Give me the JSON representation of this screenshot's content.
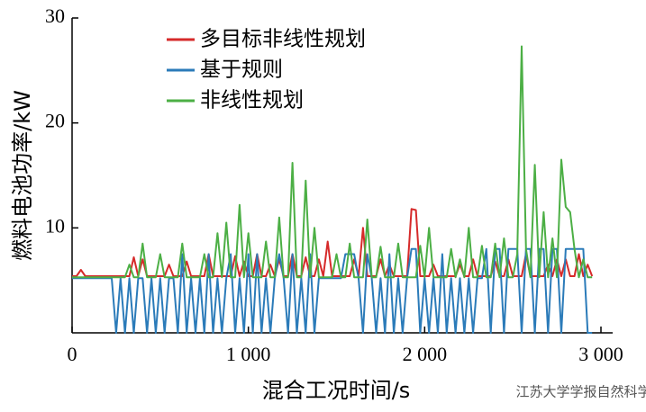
{
  "chart_data": {
    "type": "line",
    "x_label": "混合工况时间/s",
    "y_label": "燃料电池功率/kW",
    "watermark": "江苏大学学报自然科学版",
    "xlim": [
      0,
      3000
    ],
    "ylim": [
      0,
      30
    ],
    "xticks": [
      0,
      {
        "value": 1000,
        "label": "1 000"
      },
      {
        "value": 2000,
        "label": "2 000"
      },
      {
        "value": 3000,
        "label": "3 000"
      }
    ],
    "yticks": [
      10,
      20,
      30
    ],
    "grid": false,
    "legend": "top-left",
    "x": [
      0,
      25,
      50,
      75,
      100,
      125,
      150,
      175,
      200,
      225,
      250,
      275,
      300,
      325,
      350,
      375,
      400,
      425,
      450,
      475,
      500,
      525,
      550,
      575,
      600,
      625,
      650,
      675,
      700,
      725,
      750,
      775,
      800,
      825,
      850,
      875,
      900,
      925,
      950,
      975,
      1000,
      1025,
      1050,
      1075,
      1100,
      1125,
      1150,
      1175,
      1200,
      1225,
      1250,
      1275,
      1300,
      1325,
      1350,
      1375,
      1400,
      1425,
      1450,
      1475,
      1500,
      1525,
      1550,
      1575,
      1600,
      1625,
      1650,
      1675,
      1700,
      1725,
      1750,
      1775,
      1800,
      1825,
      1850,
      1875,
      1900,
      1925,
      1950,
      1975,
      2000,
      2025,
      2050,
      2075,
      2100,
      2125,
      2150,
      2175,
      2200,
      2225,
      2250,
      2275,
      2300,
      2325,
      2350,
      2375,
      2400,
      2425,
      2450,
      2475,
      2500,
      2525,
      2550,
      2575,
      2600,
      2625,
      2650,
      2675,
      2700,
      2725,
      2750,
      2775,
      2800,
      2825,
      2850,
      2875,
      2900,
      2925,
      2950
    ],
    "series": [
      {
        "name": "多目标非线性规划",
        "color": "#d62a2a",
        "values": [
          5.4,
          5.4,
          6,
          5.4,
          5.4,
          5.4,
          5.4,
          5.4,
          5.4,
          5.4,
          5.4,
          5.4,
          5.4,
          5.4,
          7.2,
          5.4,
          7,
          5.4,
          5.4,
          5.4,
          5.4,
          5.4,
          6.5,
          5.4,
          5.4,
          5.4,
          6.8,
          5.4,
          5.4,
          5.4,
          5.4,
          7.5,
          5.4,
          5.4,
          5.4,
          5.4,
          5.4,
          7.3,
          5.4,
          6.8,
          5.4,
          5.4,
          7.5,
          5.4,
          5.4,
          6.5,
          5.4,
          7,
          5.4,
          5.4,
          7.5,
          5.4,
          5.4,
          7.2,
          5.4,
          5.4,
          7,
          5.4,
          8.7,
          5.4,
          5.4,
          5.4,
          5.4,
          5.4,
          7,
          5.4,
          10,
          5.4,
          5.4,
          5.4,
          7,
          5.4,
          6.5,
          5.4,
          5.4,
          5.4,
          5.4,
          11.8,
          11.7,
          5.4,
          5.4,
          5.4,
          6.5,
          5.4,
          5.4,
          5.4,
          5.4,
          5.4,
          6.5,
          5.4,
          5.4,
          7,
          5.4,
          5.4,
          5.4,
          5.4,
          6.8,
          5.4,
          5.4,
          7,
          5.4,
          5.4,
          5.4,
          7.5,
          5.4,
          5.4,
          5.4,
          5.4,
          6.5,
          5.4,
          7,
          5.4,
          7,
          5.4,
          5.4,
          7.5,
          5.4,
          6.5,
          5.4
        ]
      },
      {
        "name": "基于规则",
        "color": "#2b7bb9",
        "values": [
          5.2,
          5.2,
          5.2,
          5.2,
          5.2,
          5.2,
          5.2,
          5.2,
          5.2,
          5.2,
          0,
          5.2,
          0,
          5.2,
          0,
          5.2,
          5.2,
          0,
          5.2,
          0,
          5.2,
          0,
          5.2,
          5.2,
          0,
          7.5,
          0,
          5.2,
          0,
          5.2,
          0,
          7.5,
          0,
          5.2,
          0,
          5.2,
          7.5,
          0,
          5.2,
          0,
          7.5,
          0,
          7.5,
          0,
          5.2,
          0,
          5.2,
          7.5,
          5.2,
          0,
          7.5,
          0,
          5.2,
          0,
          7.5,
          0,
          5.2,
          5.2,
          5.2,
          5.2,
          5.2,
          5.2,
          7.5,
          7.5,
          7.5,
          5.2,
          0,
          7.5,
          5.2,
          0,
          5.2,
          0,
          7.5,
          0,
          5.2,
          0,
          5.2,
          8,
          8,
          0,
          5.2,
          0,
          5.2,
          0,
          7.5,
          0,
          5.2,
          0,
          5.2,
          0,
          5.2,
          0,
          5.2,
          5.2,
          8,
          0,
          8,
          8,
          0,
          8,
          8,
          8,
          0,
          8,
          8,
          0,
          8,
          8,
          0,
          8,
          8,
          0,
          8,
          8,
          8,
          8,
          8,
          0,
          0
        ]
      },
      {
        "name": "非线性规划",
        "color": "#4caf45",
        "values": [
          5.3,
          5.3,
          5.3,
          5.3,
          5.3,
          5.3,
          5.3,
          5.3,
          5.3,
          5.3,
          5.3,
          5.3,
          5.3,
          6.5,
          5.3,
          5.3,
          8.5,
          5.3,
          5.3,
          5.3,
          7.5,
          5.3,
          5.3,
          5.3,
          5.3,
          8.5,
          5.3,
          5.3,
          5.3,
          5.3,
          7.5,
          5.3,
          5.3,
          9.5,
          5.3,
          10.5,
          5.3,
          5.3,
          12.2,
          5.3,
          9.5,
          5.3,
          5.3,
          5.3,
          8.7,
          5.3,
          5.3,
          11,
          5.3,
          5.3,
          16.2,
          5.3,
          5.3,
          14.5,
          5.3,
          10,
          5.3,
          5.3,
          5.3,
          5.3,
          7.5,
          5.3,
          5.3,
          8.5,
          5.3,
          5.3,
          5.3,
          10.8,
          5.3,
          5.3,
          8.2,
          5.3,
          5.3,
          5.3,
          8.5,
          5.3,
          5.3,
          5.3,
          5.3,
          8.3,
          5.3,
          10,
          5.3,
          5.3,
          5.3,
          5.3,
          8,
          5.3,
          7,
          5.3,
          10,
          5.3,
          5.3,
          8.3,
          5.3,
          5.3,
          8.5,
          5.3,
          9,
          5.3,
          5.3,
          7.5,
          27.3,
          8,
          5.3,
          16,
          5.3,
          11.5,
          5.3,
          9,
          5.3,
          16.5,
          12,
          11.5,
          8,
          5.3,
          7,
          5.3,
          5.3
        ]
      }
    ]
  }
}
